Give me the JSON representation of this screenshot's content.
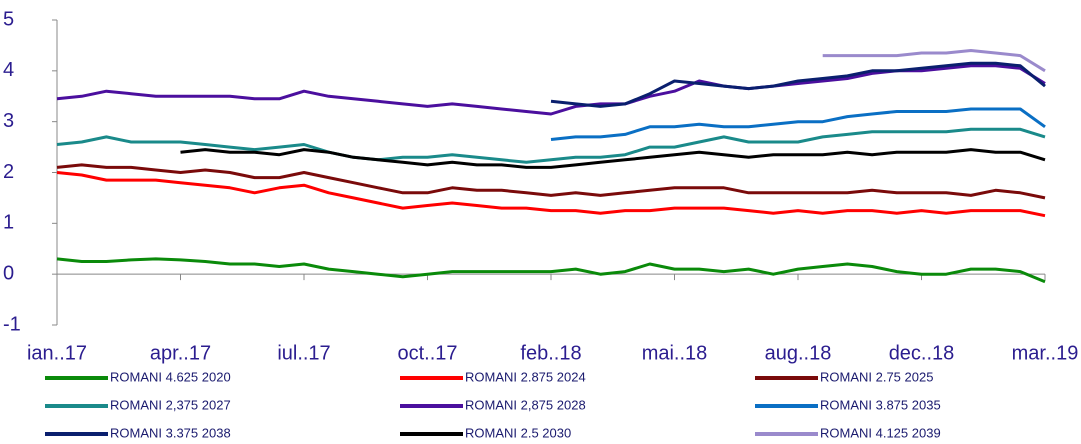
{
  "chart_data": {
    "type": "line",
    "categories": [
      "ian..17",
      null,
      null,
      null,
      null,
      "apr..17",
      null,
      null,
      null,
      null,
      "iul..17",
      null,
      null,
      null,
      null,
      "oct..17",
      null,
      null,
      null,
      null,
      "feb..18",
      null,
      null,
      null,
      null,
      "mai..18",
      null,
      null,
      null,
      null,
      "aug..18",
      null,
      null,
      null,
      null,
      "dec..18",
      null,
      null,
      null,
      null,
      "mar..19"
    ],
    "ylim": [
      -1,
      5
    ],
    "yticks": [
      -1,
      0,
      1,
      2,
      3,
      4,
      5
    ],
    "series": [
      {
        "name": "ROMANI 4.625  2020",
        "color": "#0a8a0a",
        "values": [
          0.3,
          0.25,
          0.25,
          0.28,
          0.3,
          0.28,
          0.25,
          0.2,
          0.2,
          0.15,
          0.2,
          0.1,
          0.05,
          0.0,
          -0.05,
          0.0,
          0.05,
          0.05,
          0.05,
          0.05,
          0.05,
          0.1,
          0.0,
          0.05,
          0.2,
          0.1,
          0.1,
          0.05,
          0.1,
          0.0,
          0.1,
          0.15,
          0.2,
          0.15,
          0.05,
          0.0,
          0.0,
          0.1,
          0.1,
          0.05,
          -0.15
        ]
      },
      {
        "name": "ROMANI 2.875  2024",
        "color": "#ff0000",
        "values": [
          2.0,
          1.95,
          1.85,
          1.85,
          1.85,
          1.8,
          1.75,
          1.7,
          1.6,
          1.7,
          1.75,
          1.6,
          1.5,
          1.4,
          1.3,
          1.35,
          1.4,
          1.35,
          1.3,
          1.3,
          1.25,
          1.25,
          1.2,
          1.25,
          1.25,
          1.3,
          1.3,
          1.3,
          1.25,
          1.2,
          1.25,
          1.2,
          1.25,
          1.25,
          1.2,
          1.25,
          1.2,
          1.25,
          1.25,
          1.25,
          1.15
        ]
      },
      {
        "name": "ROMANI 2.75 2025",
        "color": "#7a0a0a",
        "values": [
          2.1,
          2.15,
          2.1,
          2.1,
          2.05,
          2.0,
          2.05,
          2.0,
          1.9,
          1.9,
          2.0,
          1.9,
          1.8,
          1.7,
          1.6,
          1.6,
          1.7,
          1.65,
          1.65,
          1.6,
          1.55,
          1.6,
          1.55,
          1.6,
          1.65,
          1.7,
          1.7,
          1.7,
          1.6,
          1.6,
          1.6,
          1.6,
          1.6,
          1.65,
          1.6,
          1.6,
          1.6,
          1.55,
          1.65,
          1.6,
          1.5
        ]
      },
      {
        "name": "ROMANI 2,375 2027",
        "color": "#1a8a8a",
        "values": [
          2.55,
          2.6,
          2.7,
          2.6,
          2.6,
          2.6,
          2.55,
          2.5,
          2.45,
          2.5,
          2.55,
          2.4,
          2.3,
          2.25,
          2.3,
          2.3,
          2.35,
          2.3,
          2.25,
          2.2,
          2.25,
          2.3,
          2.3,
          2.35,
          2.5,
          2.5,
          2.6,
          2.7,
          2.6,
          2.6,
          2.6,
          2.7,
          2.75,
          2.8,
          2.8,
          2.8,
          2.8,
          2.85,
          2.85,
          2.85,
          2.7
        ]
      },
      {
        "name": "ROMANI 2,875 2028",
        "color": "#4b0f9e",
        "values": [
          3.45,
          3.5,
          3.6,
          3.55,
          3.5,
          3.5,
          3.5,
          3.5,
          3.45,
          3.45,
          3.6,
          3.5,
          3.45,
          3.4,
          3.35,
          3.3,
          3.35,
          3.3,
          3.25,
          3.2,
          3.15,
          3.3,
          3.35,
          3.35,
          3.5,
          3.6,
          3.8,
          3.7,
          3.65,
          3.7,
          3.75,
          3.8,
          3.85,
          3.95,
          4.0,
          4.0,
          4.05,
          4.1,
          4.1,
          4.05,
          3.75
        ]
      },
      {
        "name": "ROMANI 3.875 2035",
        "color": "#0a6fc4",
        "values": [
          null,
          null,
          null,
          null,
          null,
          null,
          null,
          null,
          null,
          null,
          null,
          null,
          null,
          null,
          null,
          null,
          null,
          null,
          null,
          null,
          2.65,
          2.7,
          2.7,
          2.75,
          2.9,
          2.9,
          2.95,
          2.9,
          2.9,
          2.95,
          3.0,
          3.0,
          3.1,
          3.15,
          3.2,
          3.2,
          3.2,
          3.25,
          3.25,
          3.25,
          2.9
        ]
      },
      {
        "name": "ROMANI 3.375 2038",
        "color": "#0a1f6e",
        "values": [
          null,
          null,
          null,
          null,
          null,
          null,
          null,
          null,
          null,
          null,
          null,
          null,
          null,
          null,
          null,
          null,
          null,
          null,
          null,
          null,
          3.4,
          3.35,
          3.3,
          3.35,
          3.55,
          3.8,
          3.75,
          3.7,
          3.65,
          3.7,
          3.8,
          3.85,
          3.9,
          4.0,
          4.0,
          4.05,
          4.1,
          4.15,
          4.15,
          4.1,
          3.7
        ]
      },
      {
        "name": "ROMANI 2.5 2030",
        "color": "#000000",
        "values": [
          null,
          null,
          null,
          null,
          null,
          2.4,
          2.45,
          2.4,
          2.4,
          2.35,
          2.45,
          2.4,
          2.3,
          2.25,
          2.2,
          2.15,
          2.2,
          2.15,
          2.15,
          2.1,
          2.1,
          2.15,
          2.2,
          2.25,
          2.3,
          2.35,
          2.4,
          2.35,
          2.3,
          2.35,
          2.35,
          2.35,
          2.4,
          2.35,
          2.4,
          2.4,
          2.4,
          2.45,
          2.4,
          2.4,
          2.25
        ]
      },
      {
        "name": "ROMANI 4.125 2039",
        "color": "#9a8acc",
        "values": [
          null,
          null,
          null,
          null,
          null,
          null,
          null,
          null,
          null,
          null,
          null,
          null,
          null,
          null,
          null,
          null,
          null,
          null,
          null,
          null,
          null,
          null,
          null,
          null,
          null,
          null,
          null,
          null,
          null,
          null,
          null,
          4.3,
          4.3,
          4.3,
          4.3,
          4.35,
          4.35,
          4.4,
          4.35,
          4.3,
          4.0
        ]
      }
    ]
  }
}
